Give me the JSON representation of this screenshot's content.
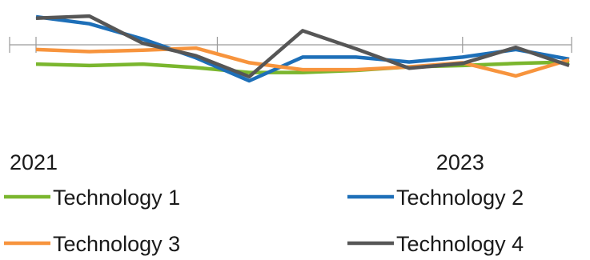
{
  "chart_data": {
    "type": "line",
    "x": [
      0,
      1,
      2,
      3,
      4,
      5,
      6,
      7,
      8,
      9,
      10
    ],
    "x_tick_labels": [
      "2021",
      "2023"
    ],
    "x_tick_positions": [
      0,
      8
    ],
    "series": [
      {
        "name": "Technology 1",
        "color": "#7ab62e",
        "values": [
          0.24,
          0.22,
          0.24,
          0.19,
          0.12,
          0.12,
          0.15,
          0.2,
          0.22,
          0.25,
          0.27
        ]
      },
      {
        "name": "Technology 2",
        "color": "#1d6fb8",
        "values": [
          0.92,
          0.82,
          0.6,
          0.33,
          0.0,
          0.34,
          0.34,
          0.27,
          0.34,
          0.45,
          0.31
        ]
      },
      {
        "name": "Technology 3",
        "color": "#f7943d",
        "values": [
          0.45,
          0.42,
          0.44,
          0.47,
          0.26,
          0.16,
          0.16,
          0.2,
          0.26,
          0.07,
          0.3
        ]
      },
      {
        "name": "Technology 4",
        "color": "#565656",
        "values": [
          0.9,
          0.93,
          0.54,
          0.36,
          0.06,
          0.72,
          0.46,
          0.18,
          0.25,
          0.48,
          0.22
        ]
      }
    ],
    "ylim": [
      0,
      1
    ],
    "grid": false,
    "legend_position": "bottom"
  }
}
